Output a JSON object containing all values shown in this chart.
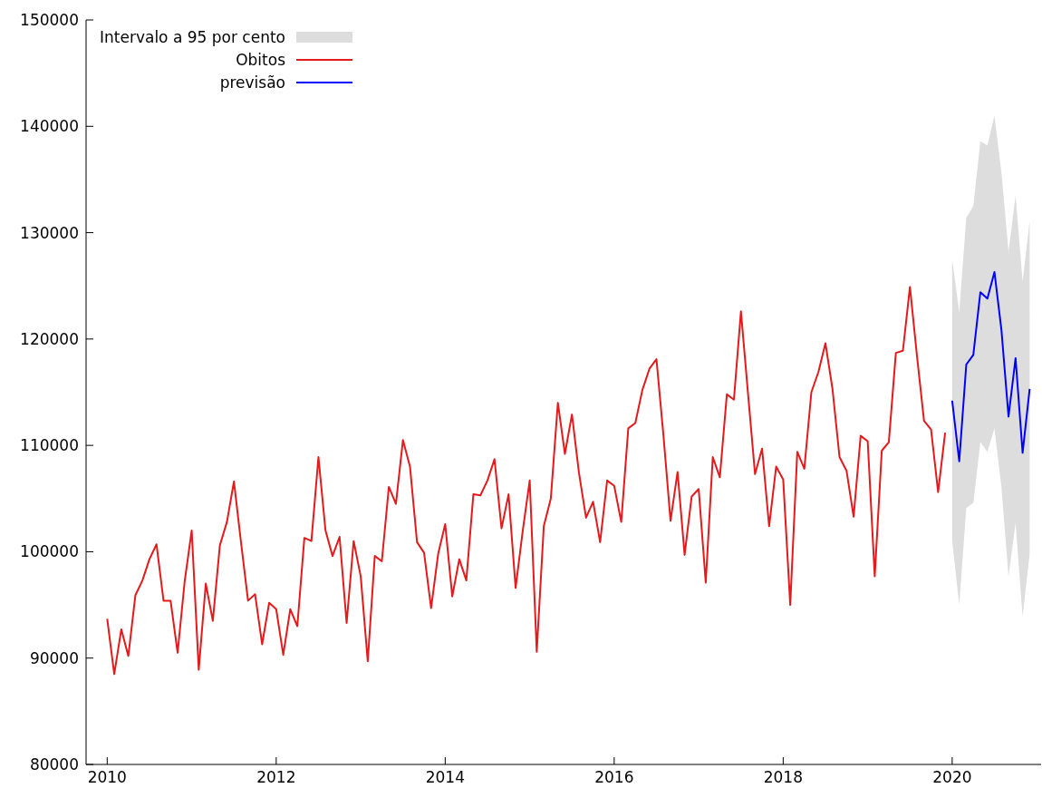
{
  "chart_data": {
    "type": "line",
    "xlim": [
      "2009-10",
      "2021-01-20"
    ],
    "xticks": [
      "2010",
      "2012",
      "2014",
      "2016",
      "2018",
      "2020"
    ],
    "annotations": [
      "Intervalo a 95 por cento"
    ],
    "ylim": [
      80000,
      150000
    ],
    "yticks": [
      80000,
      90000,
      100000,
      110000,
      120000,
      130000,
      140000,
      150000
    ],
    "grid": false,
    "legend": "top left",
    "marker": "none",
    "line_style": "solid",
    "series": [
      {
        "name": "Obitos",
        "color": "#e41a1c",
        "x": [
          "2010-01",
          "2010-02",
          "2010-03",
          "2010-04",
          "2010-05",
          "2010-06",
          "2010-07",
          "2010-08",
          "2010-09",
          "2010-10",
          "2010-11",
          "2010-12",
          "2011-01",
          "2011-02",
          "2011-03",
          "2011-04",
          "2011-05",
          "2011-06",
          "2011-07",
          "2011-08",
          "2011-09",
          "2011-10",
          "2011-11",
          "2011-12",
          "2012-01",
          "2012-02",
          "2012-03",
          "2012-04",
          "2012-05",
          "2012-06",
          "2012-07",
          "2012-08",
          "2012-09",
          "2012-10",
          "2012-11",
          "2012-12",
          "2013-01",
          "2013-02",
          "2013-03",
          "2013-04",
          "2013-05",
          "2013-06",
          "2013-07",
          "2013-08",
          "2013-09",
          "2013-10",
          "2013-11",
          "2013-12",
          "2014-01",
          "2014-02",
          "2014-03",
          "2014-04",
          "2014-05",
          "2014-06",
          "2014-07",
          "2014-08",
          "2014-09",
          "2014-10",
          "2014-11",
          "2014-12",
          "2015-01",
          "2015-02",
          "2015-03",
          "2015-04",
          "2015-05",
          "2015-06",
          "2015-07",
          "2015-08",
          "2015-09",
          "2015-10",
          "2015-11",
          "2015-12",
          "2016-01",
          "2016-02",
          "2016-03",
          "2016-04",
          "2016-05",
          "2016-06",
          "2016-07",
          "2016-08",
          "2016-09",
          "2016-10",
          "2016-11",
          "2016-12",
          "2017-01",
          "2017-02",
          "2017-03",
          "2017-04",
          "2017-05",
          "2017-06",
          "2017-07",
          "2017-08",
          "2017-09",
          "2017-10",
          "2017-11",
          "2017-12",
          "2018-01",
          "2018-02",
          "2018-03",
          "2018-04",
          "2018-05",
          "2018-06",
          "2018-07",
          "2018-08",
          "2018-09",
          "2018-10",
          "2018-11",
          "2018-12",
          "2019-01",
          "2019-02",
          "2019-03",
          "2019-04",
          "2019-05",
          "2019-06",
          "2019-07",
          "2019-08",
          "2019-09",
          "2019-10",
          "2019-11",
          "2019-12"
        ],
        "values": [
          93700,
          88500,
          92700,
          90200,
          95900,
          97300,
          99300,
          100700,
          95400,
          95400,
          90500,
          97200,
          102000,
          88900,
          97000,
          93500,
          100600,
          102800,
          106600,
          100900,
          95400,
          96000,
          91300,
          95200,
          94600,
          90300,
          94600,
          93000,
          101300,
          101000,
          108900,
          102000,
          99600,
          101400,
          93300,
          101000,
          97700,
          89700,
          99600,
          99100,
          106100,
          104500,
          110500,
          108000,
          100900,
          99900,
          94700,
          99800,
          102600,
          95800,
          99300,
          97300,
          105400,
          105300,
          106700,
          108700,
          102200,
          105400,
          96600,
          101900,
          106700,
          90600,
          102400,
          105000,
          114000,
          109200,
          112900,
          107400,
          103200,
          104700,
          100900,
          106700,
          106200,
          102800,
          111600,
          112100,
          115200,
          117200,
          118100,
          110900,
          102900,
          107500,
          99700,
          105200,
          105900,
          97100,
          108900,
          107000,
          114800,
          114300,
          122600,
          114900,
          107300,
          109700,
          102400,
          108000,
          106800,
          95000,
          109400,
          107800,
          115000,
          116900,
          119600,
          115300,
          108900,
          107600,
          103300,
          110900,
          110400,
          97700,
          109500,
          110300,
          118700,
          118900,
          124900,
          118400,
          112300,
          111500,
          105600,
          111200
        ]
      },
      {
        "name": "previsão",
        "color": "#0000ff",
        "x": [
          "2020-01",
          "2020-02",
          "2020-03",
          "2020-04",
          "2020-05",
          "2020-06",
          "2020-07",
          "2020-08",
          "2020-09",
          "2020-10",
          "2020-11",
          "2020-12"
        ],
        "values": [
          114200,
          108500,
          117600,
          118500,
          124400,
          123800,
          126300,
          120800,
          112700,
          118200,
          109300,
          115300
        ],
        "lower": [
          101000,
          95000,
          104100,
          104600,
          110300,
          109400,
          111600,
          106000,
          97700,
          102700,
          93900,
          99800
        ],
        "upper": [
          127500,
          122500,
          131400,
          132500,
          138600,
          138200,
          141000,
          135600,
          128200,
          133500,
          125400,
          131100
        ]
      }
    ]
  }
}
